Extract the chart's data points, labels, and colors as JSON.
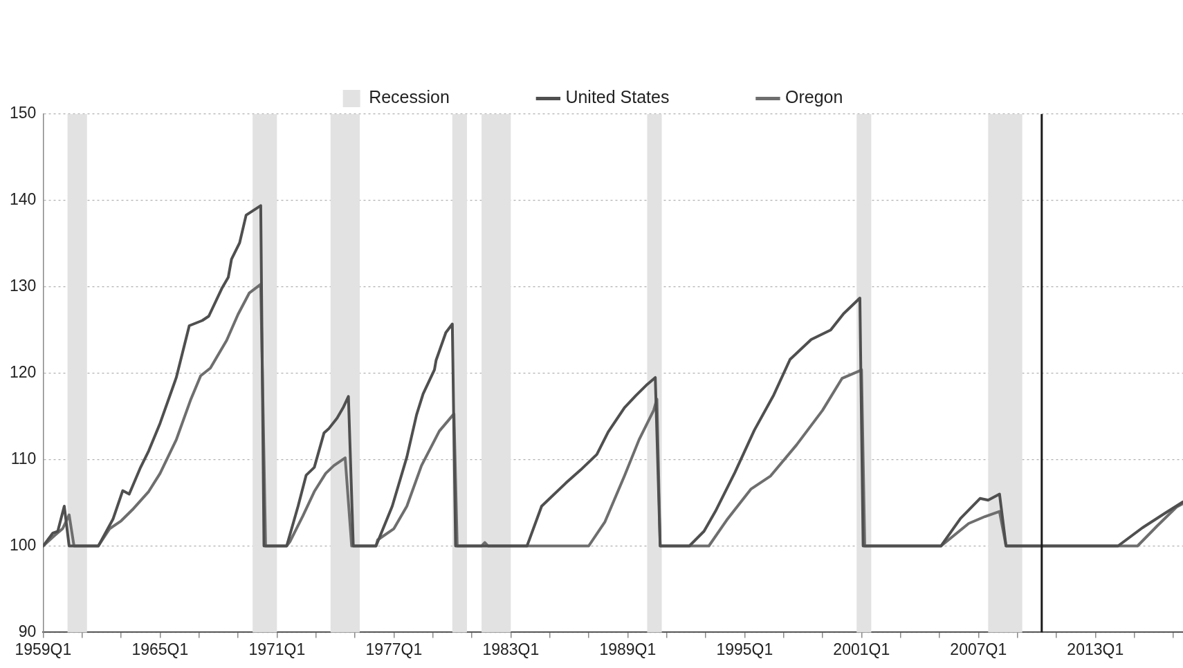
{
  "chart_data": {
    "type": "line",
    "xlim": [
      "1959-01",
      "2017-07"
    ],
    "xticks": [
      {
        "value": "1959-01",
        "label": "1959Q1"
      },
      {
        "value": "1961-01",
        "label": null
      },
      {
        "value": "1963-01",
        "label": null
      },
      {
        "value": "1965-01",
        "label": "1965Q1"
      },
      {
        "value": "1967-01",
        "label": null
      },
      {
        "value": "1969-01",
        "label": null
      },
      {
        "value": "1971-01",
        "label": "1971Q1"
      },
      {
        "value": "1973-01",
        "label": null
      },
      {
        "value": "1975-01",
        "label": null
      },
      {
        "value": "1977-01",
        "label": "1977Q1"
      },
      {
        "value": "1979-01",
        "label": null
      },
      {
        "value": "1981-01",
        "label": null
      },
      {
        "value": "1983-01",
        "label": "1983Q1"
      },
      {
        "value": "1985-01",
        "label": null
      },
      {
        "value": "1987-01",
        "label": null
      },
      {
        "value": "1989-01",
        "label": "1989Q1"
      },
      {
        "value": "1991-01",
        "label": null
      },
      {
        "value": "1993-01",
        "label": null
      },
      {
        "value": "1995-01",
        "label": "1995Q1"
      },
      {
        "value": "1997-01",
        "label": null
      },
      {
        "value": "1999-01",
        "label": null
      },
      {
        "value": "2001-01",
        "label": "2001Q1"
      },
      {
        "value": "2003-01",
        "label": null
      },
      {
        "value": "2005-01",
        "label": null
      },
      {
        "value": "2007-01",
        "label": "2007Q1"
      },
      {
        "value": "2009-01",
        "label": null
      },
      {
        "value": "2011-01",
        "label": null
      },
      {
        "value": "2013-01",
        "label": "2013Q1"
      },
      {
        "value": "2015-01",
        "label": null
      },
      {
        "value": "2017-01",
        "label": null
      }
    ],
    "ylim": [
      90,
      150
    ],
    "yticks": [
      90,
      100,
      110,
      120,
      130,
      140,
      150
    ],
    "grid": "y",
    "legend": "top",
    "marker": "none",
    "line_style": "solid",
    "series": [
      {
        "name": "United States",
        "color": "#4f4f4f",
        "x": [
          "1959-01",
          "1959-07",
          "1959-10",
          "1960-02",
          "1960-05",
          "1961-11",
          "1962-08",
          "1963-02",
          "1963-06",
          "1964-01",
          "1964-06",
          "1965-01",
          "1965-11",
          "1966-07",
          "1967-03",
          "1967-07",
          "1968-03",
          "1968-07",
          "1968-09",
          "1969-02",
          "1969-06",
          "1970-03",
          "1970-05",
          "1971-07",
          "1972-02",
          "1972-07",
          "1972-12",
          "1973-06",
          "1973-09",
          "1974-02",
          "1974-06",
          "1974-09",
          "1974-12",
          "1976-02",
          "1976-12",
          "1977-09",
          "1978-03",
          "1978-07",
          "1979-02",
          "1979-03",
          "1979-09",
          "1980-01",
          "1980-03",
          "1983-11",
          "1984-08",
          "1985-11",
          "1986-08",
          "1987-06",
          "1988-01",
          "1988-11",
          "1989-06",
          "1990-01",
          "1990-06",
          "1990-09",
          "1992-03",
          "1992-12",
          "1993-07",
          "1994-07",
          "1995-07",
          "1996-07",
          "1997-05",
          "1998-06",
          "1999-06",
          "2000-02",
          "2000-12",
          "2001-02",
          "2005-02",
          "2006-02",
          "2007-02",
          "2007-07",
          "2008-02",
          "2008-06",
          "2014-03",
          "2015-06",
          "2016-08",
          "2017-07"
        ],
        "values": [
          100,
          101.5,
          101.7,
          104.6,
          100,
          100,
          103.1,
          106.4,
          106.0,
          109.1,
          111.0,
          114.2,
          119.5,
          125.5,
          126.1,
          126.6,
          129.8,
          131.1,
          133.2,
          135.1,
          138.3,
          139.4,
          100,
          100,
          104.6,
          108.2,
          109.1,
          113.1,
          113.6,
          114.8,
          116.1,
          117.3,
          100,
          100,
          104.6,
          110.3,
          115.2,
          117.6,
          120.4,
          121.5,
          124.7,
          125.7,
          100,
          100,
          104.6,
          107.3,
          108.8,
          110.6,
          113.2,
          116.0,
          117.4,
          118.7,
          119.5,
          100,
          100,
          101.7,
          104.0,
          108.5,
          113.4,
          117.5,
          121.6,
          123.9,
          125.0,
          126.9,
          128.7,
          100,
          100,
          103.2,
          105.5,
          105.3,
          106.0,
          100,
          100,
          102.1,
          103.8,
          105.1
        ]
      },
      {
        "name": "Oregon",
        "color": "#6e6e6e",
        "x": [
          "1959-01",
          "1959-08",
          "1960-01",
          "1960-05",
          "1960-08",
          "1961-11",
          "1962-06",
          "1963-01",
          "1963-08",
          "1964-06",
          "1965-01",
          "1965-11",
          "1966-08",
          "1967-02",
          "1967-08",
          "1968-06",
          "1969-01",
          "1969-08",
          "1970-03",
          "1970-06",
          "1971-07",
          "1971-09",
          "1972-05",
          "1972-12",
          "1973-07",
          "1973-12",
          "1974-07",
          "1974-11",
          "1976-02",
          "1976-03",
          "1977-01",
          "1977-09",
          "1978-06",
          "1979-05",
          "1980-02",
          "1980-04",
          "1981-07",
          "1981-09",
          "1981-11",
          "1987-01",
          "1987-11",
          "1988-11",
          "1989-08",
          "1990-05",
          "1990-07",
          "1990-09",
          "1993-03",
          "1994-02",
          "1995-05",
          "1996-05",
          "1997-09",
          "1999-01",
          "2000-01",
          "2000-11",
          "2001-01",
          "2001-03",
          "2005-02",
          "2006-07",
          "2007-05",
          "2008-02",
          "2008-06",
          "2015-03",
          "2016-03",
          "2017-03",
          "2017-07"
        ],
        "values": [
          100,
          101.2,
          102.0,
          103.6,
          100,
          100,
          102.0,
          102.9,
          104.2,
          106.3,
          108.4,
          112.3,
          117.0,
          119.7,
          120.6,
          123.8,
          126.8,
          129.3,
          130.3,
          100,
          100,
          100.5,
          103.5,
          106.3,
          108.4,
          109.3,
          110.2,
          100,
          100,
          100.7,
          102.0,
          104.6,
          109.3,
          113.3,
          115.3,
          100,
          100,
          100.4,
          100,
          100,
          102.8,
          108.1,
          112.3,
          115.7,
          117.0,
          100,
          100,
          103.0,
          106.6,
          108.1,
          111.7,
          115.7,
          119.4,
          120.2,
          120.4,
          100,
          100,
          102.6,
          103.4,
          104.0,
          100,
          100,
          102.3,
          104.5,
          104.9
        ]
      }
    ],
    "bands": [
      {
        "axis": "x",
        "from": "1960-04",
        "to": "1961-04",
        "label": "Recession",
        "color": "#e2e2e2"
      },
      {
        "axis": "x",
        "from": "1969-10",
        "to": "1971-01",
        "color": "#e2e2e2"
      },
      {
        "axis": "x",
        "from": "1973-10",
        "to": "1975-04",
        "color": "#e2e2e2"
      },
      {
        "axis": "x",
        "from": "1980-01",
        "to": "1980-10",
        "color": "#e2e2e2"
      },
      {
        "axis": "x",
        "from": "1981-07",
        "to": "1983-01",
        "color": "#e2e2e2"
      },
      {
        "axis": "x",
        "from": "1990-01",
        "to": "1990-10",
        "color": "#e2e2e2"
      },
      {
        "axis": "x",
        "from": "2000-10",
        "to": "2001-07",
        "color": "#e2e2e2"
      },
      {
        "axis": "x",
        "from": "2007-07",
        "to": "2009-04",
        "color": "#e2e2e2"
      }
    ],
    "ref_lines": [
      {
        "axis": "x",
        "value": "2010-04",
        "color": "#1a1a1a",
        "line_style": "solid"
      }
    ]
  }
}
